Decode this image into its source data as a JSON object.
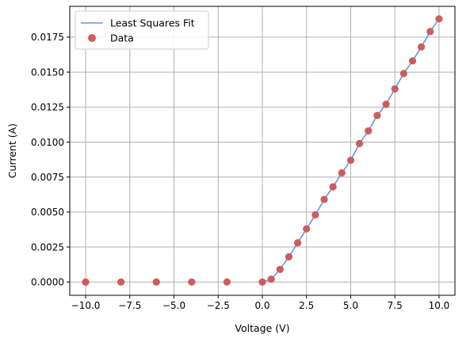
{
  "chart_data": {
    "type": "scatter",
    "title": "",
    "xlabel": "Voltage (V)",
    "ylabel": "Current (A)",
    "xlim": [
      -10.9,
      10.9
    ],
    "ylim": [
      -0.00095,
      0.0197
    ],
    "grid": true,
    "legend_position": "top-left",
    "x_ticks": [
      -10.0,
      -7.5,
      -5.0,
      -2.5,
      0.0,
      2.5,
      5.0,
      7.5,
      10.0
    ],
    "x_tick_labels": [
      "−10.0",
      "−7.5",
      "−5.0",
      "−2.5",
      "0.0",
      "2.5",
      "5.0",
      "7.5",
      "10.0"
    ],
    "y_ticks": [
      0.0,
      0.0025,
      0.005,
      0.0075,
      0.01,
      0.0125,
      0.015,
      0.0175
    ],
    "y_tick_labels": [
      "0.0000",
      "0.0025",
      "0.0050",
      "0.0075",
      "0.0100",
      "0.0125",
      "0.0150",
      "0.0175"
    ],
    "series": [
      {
        "name": "Least Squares Fit",
        "kind": "line",
        "color": "#6495ED",
        "x": [
          0.0,
          0.5,
          1.0,
          1.5,
          2.0,
          2.5,
          3.0,
          3.5,
          4.0,
          4.5,
          5.0,
          5.5,
          6.0,
          6.5,
          7.0,
          7.5,
          8.0,
          8.5,
          9.0,
          9.5,
          10.0
        ],
        "y": [
          0.0,
          0.0002,
          0.0009,
          0.0018,
          0.0028,
          0.0038,
          0.0048,
          0.0059,
          0.0068,
          0.0078,
          0.0087,
          0.0099,
          0.0108,
          0.0119,
          0.0127,
          0.0138,
          0.0149,
          0.0158,
          0.0168,
          0.0179,
          0.0188
        ]
      },
      {
        "name": "Data",
        "kind": "scatter",
        "color": "#CD5C5C",
        "x": [
          -10,
          -8,
          -6,
          -4,
          -2,
          0,
          0.5,
          1.0,
          1.5,
          2.0,
          2.5,
          3.0,
          3.5,
          4.0,
          4.5,
          5.0,
          5.5,
          6.0,
          6.5,
          7.0,
          7.5,
          8.0,
          8.5,
          9.0,
          9.5,
          10.0
        ],
        "y": [
          0.0,
          0.0,
          0.0,
          0.0,
          0.0,
          0.0,
          0.0002,
          0.0009,
          0.0018,
          0.0028,
          0.0038,
          0.0048,
          0.0059,
          0.0068,
          0.0078,
          0.0087,
          0.0099,
          0.0108,
          0.0119,
          0.0127,
          0.0138,
          0.0149,
          0.0158,
          0.0168,
          0.0179,
          0.0188
        ]
      }
    ]
  }
}
